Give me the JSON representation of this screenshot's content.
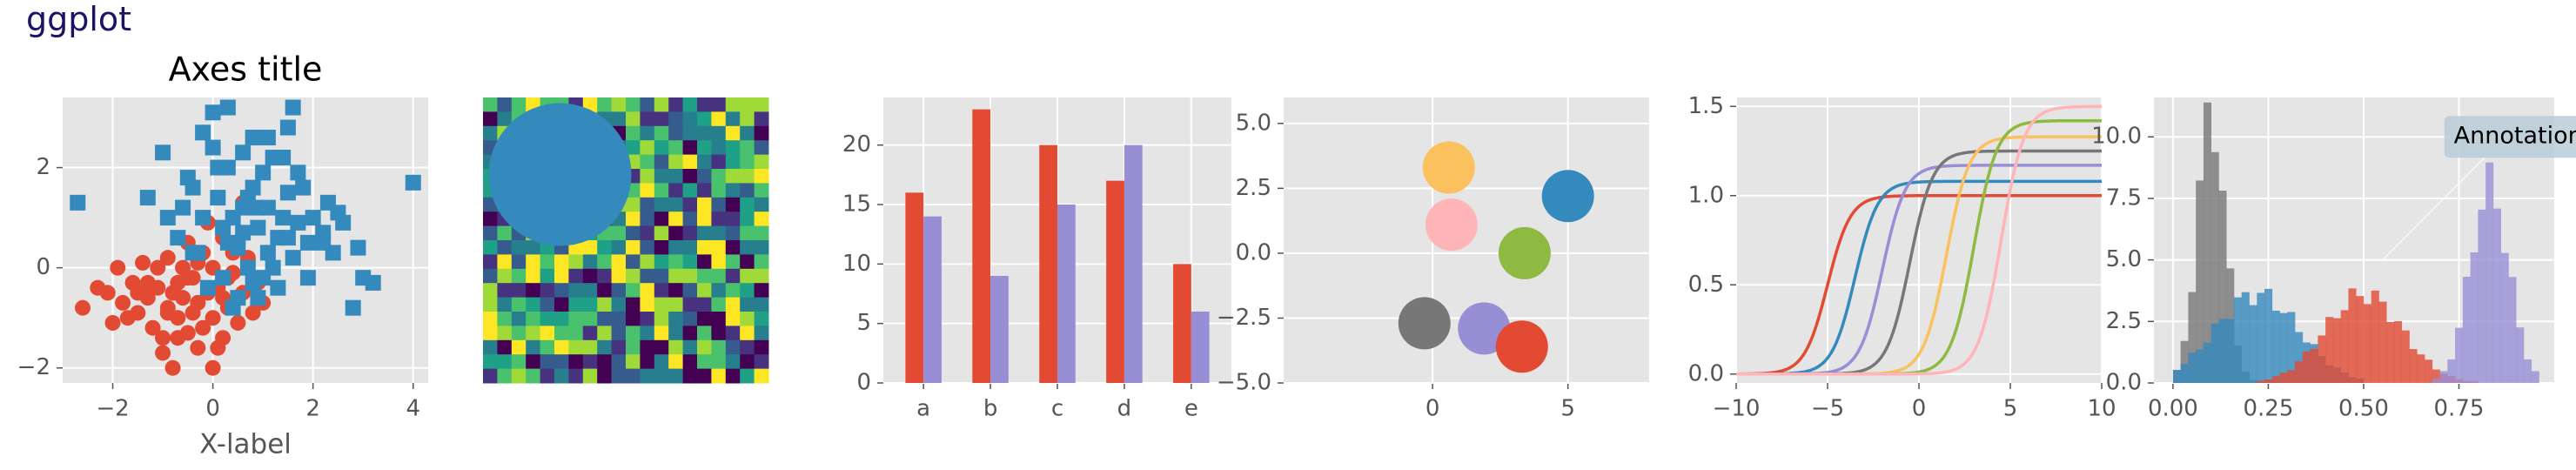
{
  "page": {
    "suptitle": "ggplot"
  },
  "colors": {
    "background": "#e5e5e5",
    "grid": "#ffffff",
    "tick_text": "#555555",
    "cycle": [
      "#E24A33",
      "#348ABD",
      "#988ED5",
      "#777777",
      "#FBC15E",
      "#8EBA42",
      "#FFB5B8"
    ]
  },
  "chart_data": [
    {
      "type": "scatter",
      "title": "Axes title",
      "xlabel": "X-label",
      "ylabel": "",
      "xlim": [
        -3,
        4.3
      ],
      "ylim": [
        -2.3,
        3.4
      ],
      "xticks": [
        -2,
        0,
        2,
        4
      ],
      "yticks": [
        -2,
        0,
        2
      ],
      "grid": true,
      "series": [
        {
          "marker": "circle",
          "color": "#E24A33",
          "points": [
            [
              -2.6,
              -0.8
            ],
            [
              -2.1,
              -0.5
            ],
            [
              -2.0,
              -1.1
            ],
            [
              -1.8,
              -0.7
            ],
            [
              -1.6,
              -0.3
            ],
            [
              -1.5,
              -0.9
            ],
            [
              -1.4,
              0.1
            ],
            [
              -1.3,
              -0.6
            ],
            [
              -1.2,
              -1.2
            ],
            [
              -1.1,
              -0.4
            ],
            [
              -1.0,
              -1.7
            ],
            [
              -0.9,
              0.2
            ],
            [
              -0.9,
              -0.8
            ],
            [
              -0.8,
              -2.0
            ],
            [
              -0.7,
              -0.3
            ],
            [
              -0.7,
              -1.0
            ],
            [
              -0.6,
              -0.6
            ],
            [
              -0.5,
              0.5
            ],
            [
              -0.5,
              -1.3
            ],
            [
              -0.4,
              -0.2
            ],
            [
              -0.3,
              -0.7
            ],
            [
              -0.3,
              -1.6
            ],
            [
              -0.2,
              0.3
            ],
            [
              -0.1,
              -0.5
            ],
            [
              0.0,
              -1.0
            ],
            [
              0.0,
              0.0
            ],
            [
              0.1,
              -0.4
            ],
            [
              0.2,
              -1.4
            ],
            [
              0.2,
              0.6
            ],
            [
              0.3,
              -0.8
            ],
            [
              0.4,
              -0.1
            ],
            [
              0.5,
              -1.1
            ],
            [
              0.6,
              -0.5
            ],
            [
              0.7,
              0.2
            ],
            [
              0.8,
              -0.9
            ],
            [
              0.9,
              -0.3
            ],
            [
              -1.0,
              -1.4
            ],
            [
              -1.7,
              -1.0
            ],
            [
              -0.6,
              0.0
            ],
            [
              0.1,
              -1.6
            ],
            [
              -0.4,
              -0.9
            ],
            [
              0.3,
              -0.2
            ],
            [
              -1.3,
              -0.3
            ],
            [
              -0.2,
              -1.2
            ],
            [
              0.5,
              -0.6
            ],
            [
              -1.9,
              0.0
            ],
            [
              -0.8,
              -0.5
            ],
            [
              -0.1,
              0.9
            ],
            [
              0.6,
              1.3
            ],
            [
              -2.3,
              -0.4
            ],
            [
              -1.1,
              0.0
            ],
            [
              0.0,
              -2.0
            ],
            [
              0.4,
              0.3
            ],
            [
              -0.5,
              -0.2
            ],
            [
              1.0,
              -0.7
            ],
            [
              -1.5,
              -0.5
            ],
            [
              -0.7,
              -1.4
            ],
            [
              0.2,
              -0.6
            ],
            [
              -0.3,
              0.1
            ],
            [
              -0.9,
              -0.9
            ]
          ]
        },
        {
          "marker": "square",
          "color": "#348ABD",
          "points": [
            [
              -2.7,
              1.3
            ],
            [
              -1.3,
              1.4
            ],
            [
              -1.0,
              2.3
            ],
            [
              -0.9,
              1.0
            ],
            [
              -0.7,
              0.6
            ],
            [
              -0.5,
              1.8
            ],
            [
              -0.4,
              1.6
            ],
            [
              -0.3,
              0.3
            ],
            [
              -0.2,
              2.7
            ],
            [
              -0.2,
              1.0
            ],
            [
              -0.1,
              -0.4
            ],
            [
              0.0,
              2.4
            ],
            [
              0.0,
              3.1
            ],
            [
              0.1,
              1.4
            ],
            [
              0.2,
              0.8
            ],
            [
              0.2,
              -0.2
            ],
            [
              0.3,
              3.2
            ],
            [
              0.3,
              2.0
            ],
            [
              0.4,
              1.0
            ],
            [
              0.5,
              0.4
            ],
            [
              0.5,
              -0.6
            ],
            [
              0.6,
              2.3
            ],
            [
              0.6,
              1.2
            ],
            [
              0.7,
              0.0
            ],
            [
              0.8,
              2.6
            ],
            [
              0.8,
              1.6
            ],
            [
              0.9,
              0.8
            ],
            [
              0.9,
              -0.6
            ],
            [
              1.0,
              1.9
            ],
            [
              1.1,
              0.3
            ],
            [
              1.1,
              1.2
            ],
            [
              1.2,
              2.2
            ],
            [
              1.3,
              0.6
            ],
            [
              1.3,
              -0.4
            ],
            [
              1.4,
              1.0
            ],
            [
              1.5,
              2.8
            ],
            [
              1.5,
              1.5
            ],
            [
              1.6,
              3.2
            ],
            [
              1.6,
              0.2
            ],
            [
              1.7,
              0.9
            ],
            [
              1.8,
              1.6
            ],
            [
              1.9,
              0.5
            ],
            [
              2.0,
              1.0
            ],
            [
              2.2,
              0.7
            ],
            [
              2.4,
              0.3
            ],
            [
              2.5,
              1.1
            ],
            [
              2.9,
              0.4
            ],
            [
              3.0,
              -0.2
            ],
            [
              3.2,
              -0.3
            ],
            [
              2.8,
              -0.8
            ],
            [
              4.0,
              1.7
            ],
            [
              0.4,
              -0.8
            ],
            [
              0.9,
              1.2
            ],
            [
              1.2,
              0.0
            ],
            [
              1.7,
              1.9
            ],
            [
              0.6,
              0.7
            ],
            [
              -0.6,
              1.2
            ],
            [
              2.2,
              0.5
            ],
            [
              1.0,
              -0.2
            ],
            [
              0.3,
              0.5
            ],
            [
              1.4,
              2.2
            ],
            [
              0.7,
              1.4
            ],
            [
              1.9,
              -0.2
            ],
            [
              2.6,
              0.9
            ],
            [
              0.1,
              2.0
            ],
            [
              -0.4,
              0.3
            ],
            [
              1.1,
              2.6
            ],
            [
              0.8,
              -0.3
            ],
            [
              1.5,
              0.6
            ],
            [
              2.3,
              1.3
            ]
          ]
        }
      ]
    },
    {
      "type": "heatmap",
      "rows": 20,
      "cols": 20,
      "colormap": "viridis",
      "overlay": {
        "shape": "circle",
        "color": "#348ABD"
      }
    },
    {
      "type": "bar",
      "categories": [
        "a",
        "b",
        "c",
        "d",
        "e"
      ],
      "ylim": [
        0,
        24
      ],
      "yticks": [
        0,
        5,
        10,
        15,
        20
      ],
      "grid": true,
      "series": [
        {
          "color": "#E24A33",
          "values": [
            16,
            23,
            20,
            17,
            10
          ]
        },
        {
          "color": "#988ED5",
          "values": [
            14,
            9,
            15,
            20,
            6
          ]
        }
      ]
    },
    {
      "type": "scatter",
      "xlim": [
        -5.5,
        8
      ],
      "ylim": [
        -5,
        6
      ],
      "xticks": [
        0,
        5
      ],
      "yticks": [
        -5.0,
        -2.5,
        0.0,
        2.5,
        5.0
      ],
      "ytick_labels": [
        "−5.0",
        "−2.5",
        "0.0",
        "2.5",
        "5.0"
      ],
      "grid": true,
      "points": [
        {
          "x": 0.6,
          "y": 3.3,
          "color": "#FBC15E"
        },
        {
          "x": 5.0,
          "y": 2.2,
          "color": "#348ABD"
        },
        {
          "x": 0.7,
          "y": 1.1,
          "color": "#FFB5B8"
        },
        {
          "x": 3.4,
          "y": 0.0,
          "color": "#8EBA42"
        },
        {
          "x": -0.3,
          "y": -2.7,
          "color": "#777777"
        },
        {
          "x": 1.9,
          "y": -2.9,
          "color": "#988ED5"
        },
        {
          "x": 3.3,
          "y": -3.6,
          "color": "#E24A33"
        }
      ]
    },
    {
      "type": "line",
      "xlim": [
        -10,
        10
      ],
      "ylim": [
        -0.05,
        1.55
      ],
      "xticks": [
        -10,
        -5,
        0,
        5,
        10
      ],
      "xtick_labels": [
        "−10",
        "−5",
        "0",
        "5",
        "10"
      ],
      "yticks": [
        0.0,
        0.5,
        1.0,
        1.5
      ],
      "ytick_labels": [
        "0.0",
        "0.5",
        "1.0",
        "1.5"
      ],
      "grid": true,
      "series": [
        {
          "color": "#E24A33",
          "center": -5.0,
          "height": 1.0
        },
        {
          "color": "#348ABD",
          "center": -3.5,
          "height": 1.08
        },
        {
          "color": "#988ED5",
          "center": -2.0,
          "height": 1.17
        },
        {
          "color": "#777777",
          "center": -0.5,
          "height": 1.25
        },
        {
          "color": "#FBC15E",
          "center": 1.5,
          "height": 1.33
        },
        {
          "color": "#8EBA42",
          "center": 3.0,
          "height": 1.42
        },
        {
          "color": "#FFB5B8",
          "center": 4.5,
          "height": 1.5
        }
      ]
    },
    {
      "type": "bar",
      "subtype": "histogram",
      "xlim": [
        -0.05,
        1.0
      ],
      "ylim": [
        0,
        11.6
      ],
      "xticks": [
        0.0,
        0.25,
        0.5,
        0.75
      ],
      "xtick_labels": [
        "0.00",
        "0.25",
        "0.50",
        "0.75"
      ],
      "yticks": [
        0.0,
        2.5,
        5.0,
        7.5,
        10.0
      ],
      "ytick_labels": [
        "0.0",
        "2.5",
        "5.0",
        "7.5",
        "10.0"
      ],
      "grid": true,
      "annotation": "Annotation",
      "series": [
        {
          "color": "#777777",
          "mean": 0.1,
          "sd": 0.036,
          "peak": 11.0,
          "from": 0.0,
          "to": 0.24
        },
        {
          "color": "#348ABD",
          "mean": 0.22,
          "sd": 0.11,
          "peak": 3.6,
          "from": 0.0,
          "to": 0.5
        },
        {
          "color": "#E24A33",
          "mean": 0.5,
          "sd": 0.1,
          "peak": 3.6,
          "from": 0.22,
          "to": 0.8
        },
        {
          "color": "#988ED5",
          "mean": 0.83,
          "sd": 0.05,
          "peak": 8.0,
          "from": 0.66,
          "to": 0.96
        }
      ]
    }
  ]
}
